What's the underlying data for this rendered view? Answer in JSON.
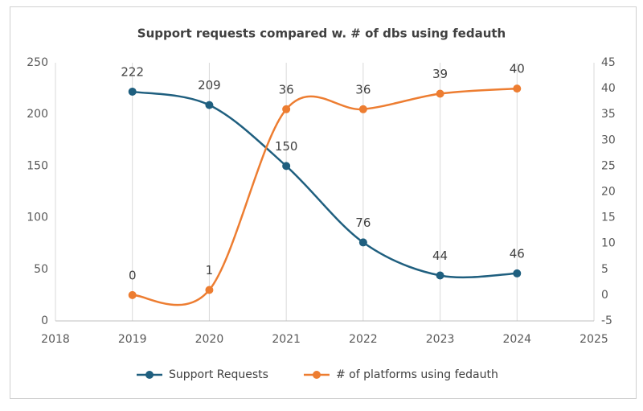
{
  "chart_data": {
    "type": "line",
    "title": "Support requests compared w. # of dbs using fedauth",
    "x": [
      2019,
      2020,
      2021,
      2022,
      2023,
      2024
    ],
    "xlim": [
      2018,
      2025
    ],
    "xticks": [
      2018,
      2019,
      2020,
      2021,
      2022,
      2023,
      2024,
      2025
    ],
    "ylim": [
      0,
      250
    ],
    "yticks": [
      0,
      50,
      100,
      150,
      200,
      250
    ],
    "y2lim": [
      -5,
      45
    ],
    "y2ticks": [
      -5,
      0,
      5,
      10,
      15,
      20,
      25,
      30,
      35,
      40,
      45
    ],
    "grid": "x",
    "smooth": true,
    "legend": "bottom",
    "series": [
      {
        "name": "Support Requests",
        "color": "#1f5f7f",
        "values": [
          222,
          209,
          150,
          76,
          44,
          46
        ]
      },
      {
        "name": "# of platforms using fedauth",
        "color": "#ed7d31",
        "axis": "y2",
        "values": [
          0,
          1,
          36,
          36,
          39,
          40
        ]
      }
    ]
  }
}
